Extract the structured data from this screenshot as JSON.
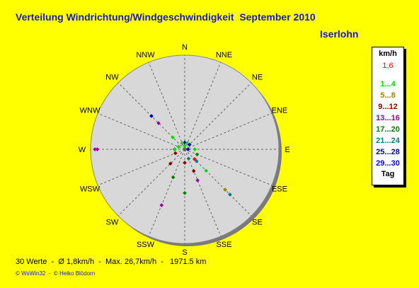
{
  "title": "Verteilung Windrichtung/Windgeschwindigkeit  September 2010",
  "location": "Iserlohn",
  "stats": "30 Werte  -  Ø 1,8km/h  -  Max. 26,7km/h  -   1971.5 km",
  "credit": "© WsWin32  -  © Heiko Blödorn",
  "legend": {
    "unit": "km/h",
    "current": "1,6",
    "bins": [
      {
        "label": "1...4",
        "color": "#00e000"
      },
      {
        "label": "5...8",
        "color": "#a08000"
      },
      {
        "label": "9...12",
        "color": "#8b0000"
      },
      {
        "label": "13...16",
        "color": "#a000a0"
      },
      {
        "label": "17...20",
        "color": "#008000"
      },
      {
        "label": "21...24",
        "color": "#008080"
      },
      {
        "label": "25...28",
        "color": "#0000c0"
      },
      {
        "label": "29...30",
        "color": "#0000ff"
      }
    ],
    "tag": "Tag"
  },
  "colors": {
    "background": "#ffff00",
    "disc": "#d8d8d8",
    "title": "#1818c8",
    "current_marker": "#ff0000"
  },
  "chart_data": {
    "type": "scatter",
    "subtype": "polar wind rose",
    "directions": [
      "N",
      "NNE",
      "NE",
      "ENE",
      "E",
      "ESE",
      "SE",
      "SSE",
      "S",
      "SSW",
      "SW",
      "WSW",
      "W",
      "WNW",
      "NW",
      "NNW"
    ],
    "radial_unit": "km/h",
    "points": [
      {
        "dir": "N",
        "speed": 1,
        "bin": 0
      },
      {
        "dir": "N",
        "speed": 2,
        "bin": 6
      },
      {
        "dir": "NNE",
        "speed": 2,
        "bin": 0
      },
      {
        "dir": "NE",
        "speed": 2,
        "bin": 6
      },
      {
        "dir": "E",
        "speed": 3,
        "bin": 0
      },
      {
        "dir": "ESE",
        "speed": 4,
        "bin": 4
      },
      {
        "dir": "SE",
        "speed": 5,
        "bin": 5
      },
      {
        "dir": "SE",
        "speed": 9,
        "bin": 0
      },
      {
        "dir": "SE",
        "speed": 17,
        "bin": 1
      },
      {
        "dir": "SE",
        "speed": 19,
        "bin": 5
      },
      {
        "dir": "SSE",
        "speed": 7,
        "bin": 2
      },
      {
        "dir": "SSE",
        "speed": 10,
        "bin": 3
      },
      {
        "dir": "S",
        "speed": 4,
        "bin": 2
      },
      {
        "dir": "S",
        "speed": 13,
        "bin": 4
      },
      {
        "dir": "SSW",
        "speed": 9,
        "bin": 4
      },
      {
        "dir": "SSW",
        "speed": 18,
        "bin": 3
      },
      {
        "dir": "SW",
        "speed": 6,
        "bin": 2
      },
      {
        "dir": "WSW",
        "speed": 3,
        "bin": 2
      },
      {
        "dir": "W",
        "speed": 3,
        "bin": 6
      },
      {
        "dir": "W",
        "speed": 3,
        "bin": 2
      },
      {
        "dir": "W",
        "speed": 3,
        "bin": 0
      },
      {
        "dir": "W",
        "speed": 26,
        "bin": 3
      },
      {
        "dir": "W",
        "speed": 26.7,
        "bin": 3
      },
      {
        "dir": "WNW",
        "speed": 2,
        "bin": 0
      },
      {
        "dir": "NW",
        "speed": 5,
        "bin": 0
      },
      {
        "dir": "NW",
        "speed": 11,
        "bin": 3
      },
      {
        "dir": "NW",
        "speed": 14,
        "bin": 6
      },
      {
        "dir": "NNW",
        "speed": 2,
        "bin": 0
      },
      {
        "dir": "E",
        "speed": 1,
        "bin": 6
      },
      {
        "dir": "SSE",
        "speed": 3,
        "bin": 5
      }
    ],
    "current_point": {
      "dir": "SE",
      "speed": 1.6
    },
    "rmax": 28
  }
}
